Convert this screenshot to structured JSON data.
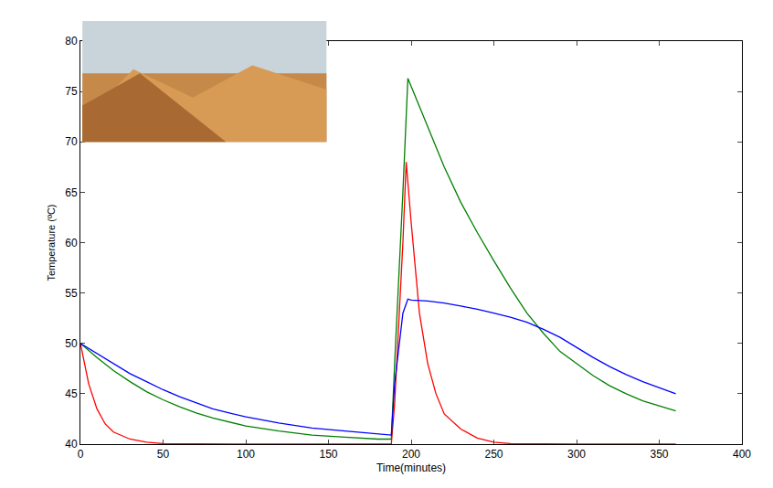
{
  "chart_data": {
    "type": "line",
    "x_label": "Time(minutes)",
    "y_label": "Temperature (ºC)",
    "xlim": [
      0,
      400
    ],
    "xticks": [
      0,
      50,
      100,
      150,
      200,
      250,
      300,
      350,
      400
    ],
    "ylim": [
      40,
      80
    ],
    "yticks": [
      40,
      45,
      50,
      55,
      60,
      65,
      70,
      75,
      80
    ],
    "grid": false,
    "series": [
      {
        "color": "#ff0000",
        "x": [
          0,
          5,
          10,
          15,
          20,
          30,
          40,
          50,
          100,
          150,
          188,
          190,
          192,
          195,
          197,
          200,
          205,
          210,
          215,
          220,
          230,
          240,
          250,
          260,
          300,
          360
        ],
        "values": [
          50,
          46,
          43.5,
          42,
          41.2,
          40.5,
          40.2,
          40.05,
          40,
          40,
          40,
          44,
          50,
          60,
          68,
          62,
          53,
          48,
          45,
          43,
          41.5,
          40.6,
          40.2,
          40.05,
          40,
          40
        ]
      },
      {
        "color": "#008000",
        "x": [
          0,
          10,
          20,
          30,
          40,
          50,
          60,
          70,
          80,
          90,
          100,
          120,
          140,
          160,
          180,
          188,
          190,
          195,
          198,
          200,
          210,
          220,
          230,
          240,
          250,
          260,
          270,
          280,
          290,
          300,
          310,
          320,
          330,
          340,
          350,
          360
        ],
        "values": [
          50,
          48.6,
          47.3,
          46.2,
          45.2,
          44.4,
          43.7,
          43.1,
          42.6,
          42.2,
          41.8,
          41.3,
          40.9,
          40.7,
          40.5,
          40.5,
          48,
          65,
          76.3,
          75.5,
          71.5,
          67.5,
          64,
          61,
          58.2,
          55.5,
          53,
          51,
          49.2,
          48,
          46.8,
          45.8,
          45,
          44.3,
          43.8,
          43.3
        ]
      },
      {
        "color": "#0000ff",
        "x": [
          0,
          10,
          20,
          30,
          40,
          50,
          60,
          70,
          80,
          90,
          100,
          120,
          140,
          160,
          180,
          188,
          190,
          195,
          198,
          200,
          210,
          220,
          230,
          240,
          250,
          260,
          270,
          280,
          290,
          300,
          310,
          320,
          330,
          340,
          350,
          360
        ],
        "values": [
          50,
          49,
          48,
          47,
          46.2,
          45.4,
          44.7,
          44.1,
          43.5,
          43.1,
          42.7,
          42.1,
          41.6,
          41.3,
          41,
          40.9,
          46,
          53,
          54.4,
          54.3,
          54.2,
          54,
          53.7,
          53.4,
          53,
          52.6,
          52.1,
          51.4,
          50.6,
          49.6,
          48.6,
          47.7,
          46.9,
          46.2,
          45.6,
          45
        ]
      }
    ]
  }
}
